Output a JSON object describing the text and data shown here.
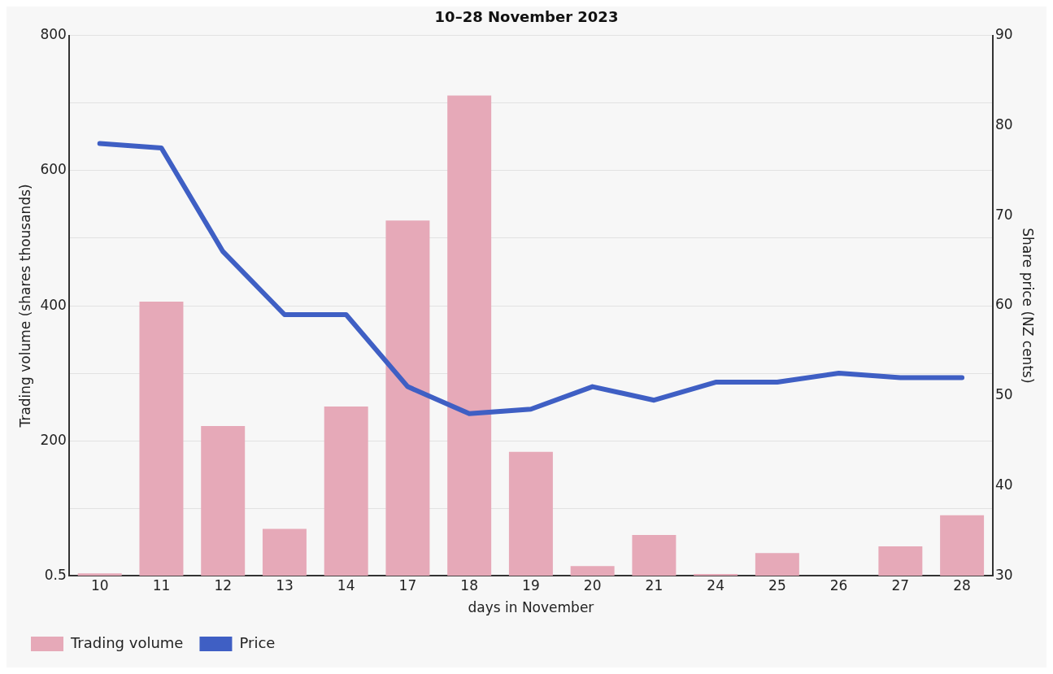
{
  "chart_data": {
    "type": "bar",
    "title": "10–28 November 2023",
    "xlabel": "days in November",
    "ylabel": "Trading volume (shares thousands)",
    "y2label": "Share price (NZ cents)",
    "categories": [
      "10",
      "11",
      "12",
      "13",
      "14",
      "17",
      "18",
      "19",
      "20",
      "21",
      "24",
      "25",
      "26",
      "27",
      "28"
    ],
    "series": [
      {
        "name": "Trading volume",
        "color": "#e6a9b8",
        "values": [
          4,
          406,
          222,
          70,
          251,
          526,
          711,
          184,
          15,
          61,
          3,
          34,
          null,
          44,
          90
        ]
      },
      {
        "name": "Price",
        "type": "line",
        "axis": "y2",
        "color": "#3f5fc4",
        "marker": "none",
        "values": [
          78,
          77.5,
          66,
          59,
          59,
          51,
          48,
          48.5,
          51,
          49.5,
          51.5,
          51.5,
          52.5,
          52,
          52
        ]
      }
    ],
    "ylim": [
      0.5,
      800
    ],
    "yticks": [
      0.5,
      {
        "value": 100,
        "label": null
      },
      200,
      {
        "value": 300,
        "label": null
      },
      400,
      {
        "value": 500,
        "label": null
      },
      600,
      {
        "value": 700,
        "label": null
      },
      800
    ],
    "y2lim": [
      30,
      90
    ],
    "y2ticks": [
      30,
      40,
      50,
      60,
      70,
      80,
      90
    ],
    "grid": "y",
    "legend": "bottom left"
  }
}
